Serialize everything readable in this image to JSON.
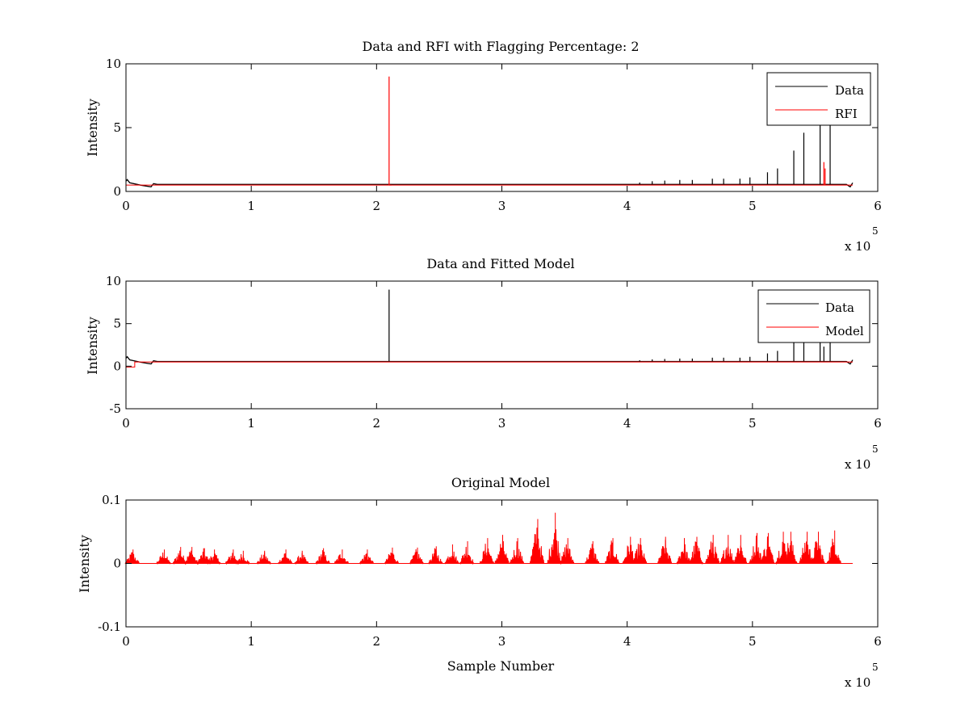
{
  "chart_data": [
    {
      "type": "line",
      "title": "Data and RFI with Flagging Percentage: 2",
      "xlabel": "",
      "ylabel": "Intensity",
      "xlim": [
        0,
        6
      ],
      "ylim": [
        0,
        10
      ],
      "x_multiplier_label": "x 10",
      "x_multiplier_exponent": "5",
      "x_ticks": [
        "0",
        "1",
        "2",
        "3",
        "4",
        "5",
        "6"
      ],
      "y_ticks": [
        "0",
        "5",
        "10"
      ],
      "y_tick_values": [
        0,
        5,
        10
      ],
      "legend_position": "top-right",
      "grid": false,
      "series": [
        {
          "name": "Data",
          "color": "#000000",
          "baseline": 0.55,
          "x_end": 5.8,
          "spikes": [
            {
              "x": 4.1,
              "y": 0.7
            },
            {
              "x": 4.2,
              "y": 0.8
            },
            {
              "x": 4.3,
              "y": 0.85
            },
            {
              "x": 4.42,
              "y": 0.9
            },
            {
              "x": 4.52,
              "y": 0.9
            },
            {
              "x": 4.68,
              "y": 1.0
            },
            {
              "x": 4.77,
              "y": 1.0
            },
            {
              "x": 4.9,
              "y": 1.0
            },
            {
              "x": 4.98,
              "y": 1.1
            },
            {
              "x": 5.12,
              "y": 1.5
            },
            {
              "x": 5.2,
              "y": 1.8
            },
            {
              "x": 5.33,
              "y": 3.2
            },
            {
              "x": 5.41,
              "y": 4.6
            },
            {
              "x": 5.54,
              "y": 5.6
            },
            {
              "x": 5.62,
              "y": 6.0
            }
          ]
        },
        {
          "name": "RFI",
          "color": "#ff0000",
          "baseline": 0.5,
          "x_end": 5.8,
          "spikes": [
            {
              "x": 2.1,
              "y": 9.0
            },
            {
              "x": 5.57,
              "y": 2.3
            },
            {
              "x": 5.58,
              "y": 1.8
            }
          ]
        }
      ]
    },
    {
      "type": "line",
      "title": "Data and Fitted Model",
      "xlabel": "",
      "ylabel": "Intensity",
      "xlim": [
        0,
        6
      ],
      "ylim": [
        -5,
        10
      ],
      "x_multiplier_label": "x 10",
      "x_multiplier_exponent": "5",
      "x_ticks": [
        "0",
        "1",
        "2",
        "3",
        "4",
        "5",
        "6"
      ],
      "y_ticks": [
        "-5",
        "0",
        "5",
        "10"
      ],
      "y_tick_values": [
        -5,
        0,
        5,
        10
      ],
      "legend_position": "top-right",
      "grid": false,
      "series": [
        {
          "name": "Data",
          "color": "#000000",
          "baseline": 0.55,
          "x_end": 5.8,
          "spikes": [
            {
              "x": 2.1,
              "y": 9.0
            },
            {
              "x": 4.1,
              "y": 0.7
            },
            {
              "x": 4.2,
              "y": 0.8
            },
            {
              "x": 4.3,
              "y": 0.85
            },
            {
              "x": 4.42,
              "y": 0.9
            },
            {
              "x": 4.52,
              "y": 0.9
            },
            {
              "x": 4.68,
              "y": 1.0
            },
            {
              "x": 4.77,
              "y": 1.0
            },
            {
              "x": 4.9,
              "y": 1.0
            },
            {
              "x": 4.98,
              "y": 1.1
            },
            {
              "x": 5.12,
              "y": 1.5
            },
            {
              "x": 5.2,
              "y": 1.8
            },
            {
              "x": 5.33,
              "y": 3.2
            },
            {
              "x": 5.41,
              "y": 4.6
            },
            {
              "x": 5.54,
              "y": 5.6
            },
            {
              "x": 5.57,
              "y": 2.3
            },
            {
              "x": 5.62,
              "y": 6.0
            }
          ]
        },
        {
          "name": "Model",
          "color": "#ff0000",
          "baseline": 0.5,
          "x_end": 5.8,
          "dip": {
            "x_start": 0.0,
            "x_end": 0.07,
            "y": -0.1
          },
          "spikes": []
        }
      ]
    },
    {
      "type": "line",
      "title": "Original Model",
      "xlabel": "Sample Number",
      "ylabel": "Intensity",
      "xlim": [
        0,
        6
      ],
      "ylim": [
        -0.1,
        0.1
      ],
      "x_multiplier_label": "x 10",
      "x_multiplier_exponent": "5",
      "x_ticks": [
        "0",
        "1",
        "2",
        "3",
        "4",
        "5",
        "6"
      ],
      "y_ticks": [
        "-0.1",
        "0",
        "0.1"
      ],
      "y_tick_values": [
        -0.1,
        0,
        0.1
      ],
      "grid": false,
      "series": [
        {
          "color": "#ff0000",
          "baseline": 0.0,
          "x_end": 5.8,
          "bursts": [
            {
              "x": 0.05,
              "y": 0.022
            },
            {
              "x": 0.3,
              "y": 0.022
            },
            {
              "x": 0.43,
              "y": 0.026
            },
            {
              "x": 0.52,
              "y": 0.026
            },
            {
              "x": 0.62,
              "y": 0.024
            },
            {
              "x": 0.7,
              "y": 0.022
            },
            {
              "x": 0.85,
              "y": 0.022
            },
            {
              "x": 0.93,
              "y": 0.02
            },
            {
              "x": 1.1,
              "y": 0.02
            },
            {
              "x": 1.27,
              "y": 0.022
            },
            {
              "x": 1.4,
              "y": 0.02
            },
            {
              "x": 1.57,
              "y": 0.024
            },
            {
              "x": 1.72,
              "y": 0.022
            },
            {
              "x": 1.92,
              "y": 0.022
            },
            {
              "x": 2.12,
              "y": 0.025
            },
            {
              "x": 2.32,
              "y": 0.025
            },
            {
              "x": 2.47,
              "y": 0.027
            },
            {
              "x": 2.6,
              "y": 0.03
            },
            {
              "x": 2.72,
              "y": 0.035
            },
            {
              "x": 2.88,
              "y": 0.04
            },
            {
              "x": 3.0,
              "y": 0.045
            },
            {
              "x": 3.12,
              "y": 0.04
            },
            {
              "x": 3.28,
              "y": 0.07
            },
            {
              "x": 3.42,
              "y": 0.08
            },
            {
              "x": 3.52,
              "y": 0.04
            },
            {
              "x": 3.72,
              "y": 0.035
            },
            {
              "x": 3.88,
              "y": 0.04
            },
            {
              "x": 4.02,
              "y": 0.042
            },
            {
              "x": 4.1,
              "y": 0.04
            },
            {
              "x": 4.3,
              "y": 0.042
            },
            {
              "x": 4.45,
              "y": 0.04
            },
            {
              "x": 4.55,
              "y": 0.042
            },
            {
              "x": 4.68,
              "y": 0.045
            },
            {
              "x": 4.8,
              "y": 0.045
            },
            {
              "x": 4.9,
              "y": 0.045
            },
            {
              "x": 5.03,
              "y": 0.048
            },
            {
              "x": 5.12,
              "y": 0.048
            },
            {
              "x": 5.24,
              "y": 0.05
            },
            {
              "x": 5.3,
              "y": 0.05
            },
            {
              "x": 5.43,
              "y": 0.05
            },
            {
              "x": 5.52,
              "y": 0.05
            },
            {
              "x": 5.65,
              "y": 0.052
            }
          ]
        }
      ]
    }
  ]
}
